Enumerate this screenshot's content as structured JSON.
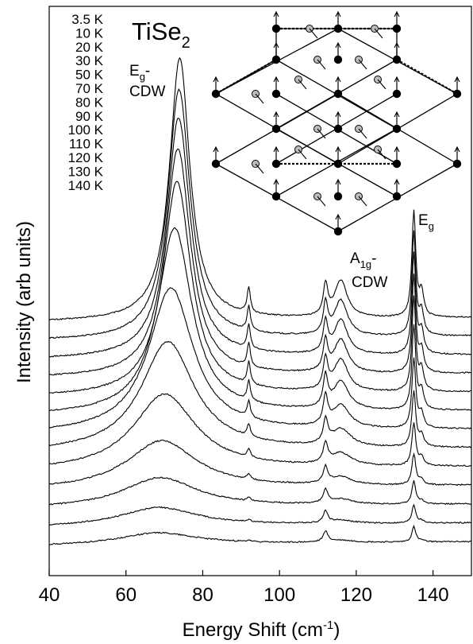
{
  "chart_data": {
    "type": "line",
    "title": "TiSe",
    "title_subscript": "2",
    "xlabel": "Energy Shift (cm",
    "xlabel_sup": "-1",
    "xlabel_end": ")",
    "ylabel": "Intensity (arb units)",
    "xlim": [
      40,
      150
    ],
    "xticks": [
      "40",
      "60",
      "80",
      "100",
      "120",
      "140"
    ],
    "legend_position": "top-left",
    "series": [
      {
        "name": "3.5 K",
        "baseline": 0.98,
        "scale": 1.0
      },
      {
        "name": "10 K",
        "baseline": 0.93,
        "scale": 0.97
      },
      {
        "name": "20 K",
        "baseline": 0.88,
        "scale": 0.95
      },
      {
        "name": "30 K",
        "baseline": 0.83,
        "scale": 0.92
      },
      {
        "name": "50 K",
        "baseline": 0.78,
        "scale": 0.88
      },
      {
        "name": "70 K",
        "baseline": 0.72,
        "scale": 0.78
      },
      {
        "name": "80 K",
        "baseline": 0.66,
        "scale": 0.62
      },
      {
        "name": "90 K",
        "baseline": 0.6,
        "scale": 0.48
      },
      {
        "name": "100 K",
        "baseline": 0.54,
        "scale": 0.34
      },
      {
        "name": "110 K",
        "baseline": 0.48,
        "scale": 0.22
      },
      {
        "name": "120 K",
        "baseline": 0.42,
        "scale": 0.14
      },
      {
        "name": "130 K",
        "baseline": 0.37,
        "scale": 0.09
      },
      {
        "name": "140 K",
        "baseline": 0.32,
        "scale": 0.06
      }
    ],
    "peaks": {
      "eg_cdw_center": 74,
      "a1g_cdw_center": 116,
      "eg_center": 135,
      "weak_92": 92,
      "weak_112": 112
    },
    "annotations": [
      {
        "id": "eg-cdw",
        "main": "E",
        "sub": "g",
        "suffix": "-",
        "line2": "CDW"
      },
      {
        "id": "a1g-cdw",
        "main": "A",
        "sub": "1g",
        "suffix": "-",
        "line2": "CDW"
      },
      {
        "id": "eg",
        "main": "E",
        "sub": "g",
        "suffix": "",
        "line2": ""
      }
    ]
  }
}
